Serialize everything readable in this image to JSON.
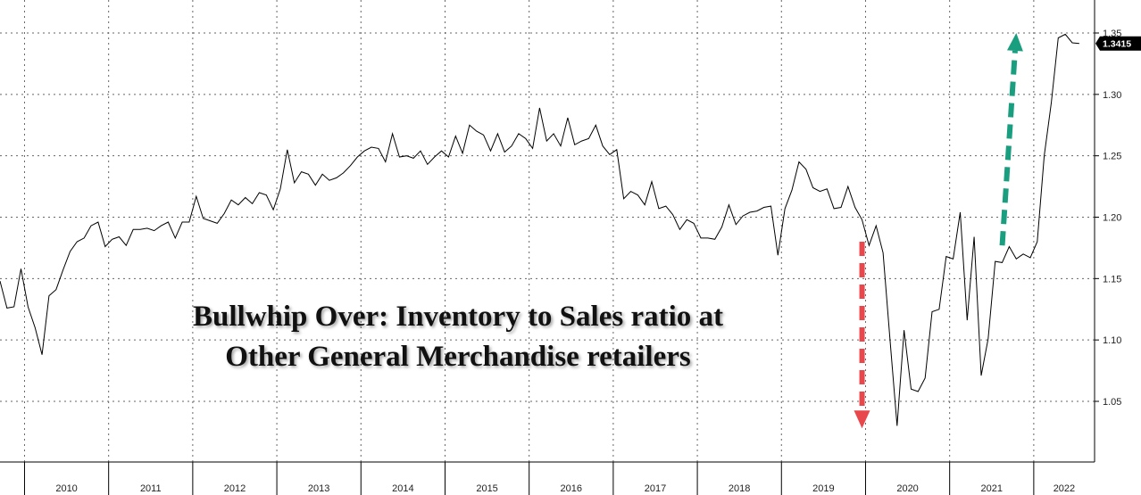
{
  "chart_data": {
    "type": "line",
    "title_lines": [
      "Bullwhip Over: Inventory to Sales ratio at",
      "Other General Merchandise retailers"
    ],
    "ylim": [
      1.0,
      1.37
    ],
    "y_ticks": [
      "1.05",
      "1.10",
      "1.15",
      "1.20",
      "1.25",
      "1.30",
      "1.35"
    ],
    "x_labels": [
      "2010",
      "2011",
      "2012",
      "2013",
      "2014",
      "2015",
      "2016",
      "2017",
      "2018",
      "2019",
      "2020",
      "2021",
      "2022"
    ],
    "last_value_label": "1.3415",
    "grid": true,
    "series": [
      {
        "start": "2009-09",
        "frequency": "monthly",
        "values": [
          1.148,
          1.126,
          1.127,
          1.158,
          1.127,
          1.11,
          1.088,
          1.136,
          1.141,
          1.157,
          1.172,
          1.18,
          1.183,
          1.193,
          1.196,
          1.176,
          1.182,
          1.184,
          1.177,
          1.19,
          1.19,
          1.191,
          1.189,
          1.193,
          1.196,
          1.183,
          1.196,
          1.196,
          1.217,
          1.199,
          1.197,
          1.195,
          1.203,
          1.214,
          1.21,
          1.216,
          1.211,
          1.22,
          1.218,
          1.206,
          1.223,
          1.255,
          1.228,
          1.237,
          1.235,
          1.226,
          1.235,
          1.23,
          1.232,
          1.236,
          1.242,
          1.249,
          1.254,
          1.257,
          1.256,
          1.245,
          1.268,
          1.249,
          1.25,
          1.248,
          1.254,
          1.243,
          1.249,
          1.254,
          1.249,
          1.266,
          1.252,
          1.275,
          1.27,
          1.267,
          1.254,
          1.268,
          1.253,
          1.258,
          1.268,
          1.264,
          1.256,
          1.289,
          1.262,
          1.268,
          1.258,
          1.281,
          1.259,
          1.262,
          1.264,
          1.275,
          1.258,
          1.251,
          1.255,
          1.215,
          1.221,
          1.218,
          1.21,
          1.229,
          1.207,
          1.209,
          1.202,
          1.19,
          1.198,
          1.195,
          1.183,
          1.183,
          1.182,
          1.192,
          1.21,
          1.194,
          1.201,
          1.204,
          1.205,
          1.208,
          1.209,
          1.169,
          1.207,
          1.222,
          1.245,
          1.239,
          1.224,
          1.221,
          1.223,
          1.207,
          1.208,
          1.225,
          1.208,
          1.198,
          1.177,
          1.193,
          1.171,
          1.1,
          1.03,
          1.108,
          1.06,
          1.058,
          1.069,
          1.123,
          1.125,
          1.168,
          1.166,
          1.204,
          1.116,
          1.184,
          1.071,
          1.101,
          1.164,
          1.163,
          1.176,
          1.166,
          1.17,
          1.167,
          1.18,
          1.25,
          1.293,
          1.346,
          1.349,
          1.342,
          1.3415
        ]
      }
    ],
    "annotations": [
      {
        "type": "arrow",
        "direction": "down",
        "color": "#e8474c",
        "from": {
          "date": "2019-12",
          "value": 1.18
        },
        "to": {
          "date": "2019-12",
          "value": 1.028
        }
      },
      {
        "type": "arrow",
        "direction": "up",
        "color": "#1a9e80",
        "from": {
          "date": "2021-08",
          "value": 1.177
        },
        "to": {
          "date": "2021-10",
          "value": 1.35
        }
      }
    ]
  }
}
